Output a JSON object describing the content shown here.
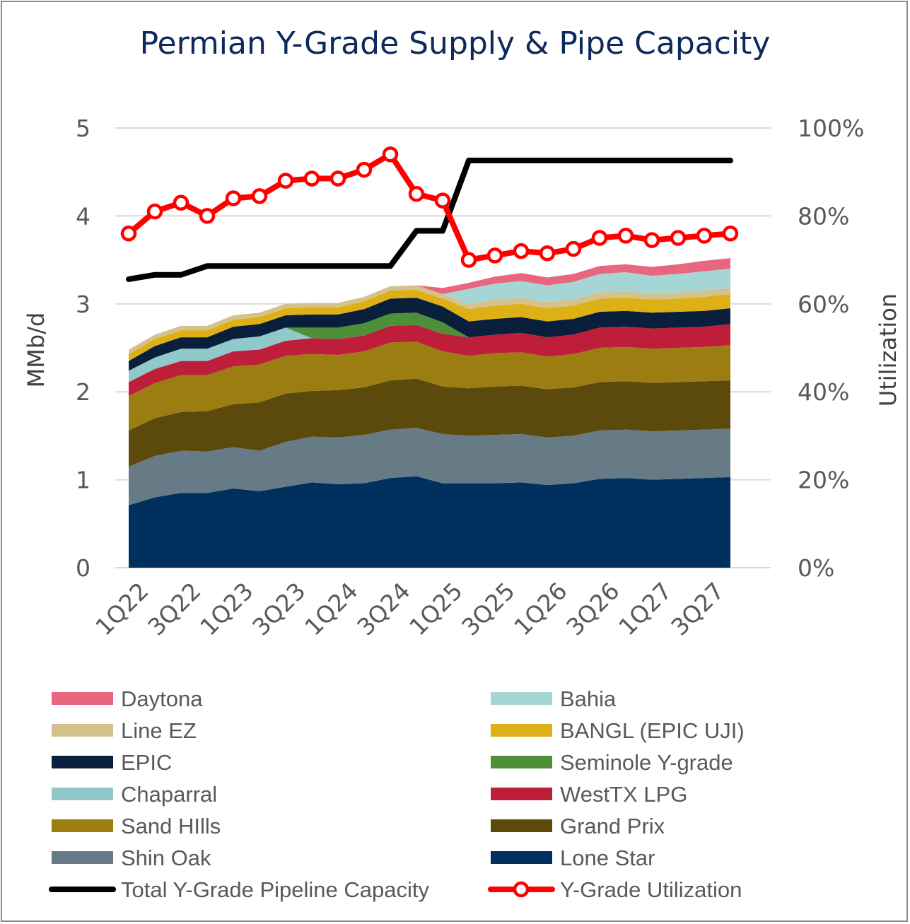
{
  "chart_data": {
    "type": "area",
    "title": "Permian Y-Grade Supply & Pipe Capacity",
    "ylabel": "MMb/d",
    "y2label": "Utilization",
    "ylim": [
      0,
      5
    ],
    "y2lim": [
      0,
      100
    ],
    "y_ticks": [
      "0",
      "1",
      "2",
      "3",
      "4",
      "5"
    ],
    "y2_ticks": [
      "0%",
      "20%",
      "40%",
      "60%",
      "80%",
      "100%"
    ],
    "x_tick_labels": [
      "1Q22",
      "3Q22",
      "1Q23",
      "3Q23",
      "1Q24",
      "3Q24",
      "1Q25",
      "3Q25",
      "1Q26",
      "3Q26",
      "1Q27",
      "3Q27"
    ],
    "x": [
      "1Q22",
      "2Q22",
      "3Q22",
      "4Q22",
      "1Q23",
      "2Q23",
      "3Q23",
      "4Q23",
      "1Q24",
      "2Q24",
      "3Q24",
      "4Q24",
      "1Q25",
      "2Q25",
      "3Q25",
      "4Q25",
      "1Q26",
      "2Q26",
      "3Q26",
      "4Q26",
      "1Q27",
      "2Q27",
      "3Q27",
      "4Q27"
    ],
    "stacked_series": [
      {
        "name": "Lone Star",
        "color": "#00305e",
        "values": [
          0.71,
          0.8,
          0.85,
          0.85,
          0.9,
          0.87,
          0.92,
          0.97,
          0.95,
          0.96,
          1.02,
          1.04,
          0.96,
          0.96,
          0.96,
          0.97,
          0.94,
          0.96,
          1.01,
          1.02,
          1.0,
          1.01,
          1.02,
          1.03
        ]
      },
      {
        "name": "Shin Oak",
        "color": "#667b85",
        "values": [
          0.44,
          0.47,
          0.48,
          0.47,
          0.47,
          0.46,
          0.51,
          0.52,
          0.53,
          0.55,
          0.55,
          0.55,
          0.56,
          0.54,
          0.55,
          0.55,
          0.54,
          0.54,
          0.55,
          0.55,
          0.55,
          0.55,
          0.55,
          0.55
        ]
      },
      {
        "name": "Grand Prix",
        "color": "#5c4a0c",
        "values": [
          0.41,
          0.43,
          0.44,
          0.46,
          0.49,
          0.55,
          0.55,
          0.52,
          0.54,
          0.54,
          0.56,
          0.56,
          0.54,
          0.54,
          0.55,
          0.55,
          0.55,
          0.55,
          0.55,
          0.55,
          0.55,
          0.55,
          0.55,
          0.55
        ]
      },
      {
        "name": "Sand HIlls",
        "color": "#9b7d12",
        "values": [
          0.39,
          0.4,
          0.42,
          0.41,
          0.43,
          0.43,
          0.43,
          0.42,
          0.4,
          0.41,
          0.43,
          0.42,
          0.4,
          0.37,
          0.38,
          0.38,
          0.37,
          0.38,
          0.39,
          0.39,
          0.39,
          0.39,
          0.39,
          0.4
        ]
      },
      {
        "name": "WestTX LPG",
        "color": "#bf1e3a",
        "values": [
          0.16,
          0.16,
          0.16,
          0.16,
          0.17,
          0.17,
          0.17,
          0.18,
          0.18,
          0.18,
          0.19,
          0.19,
          0.2,
          0.21,
          0.21,
          0.22,
          0.22,
          0.22,
          0.23,
          0.23,
          0.23,
          0.23,
          0.23,
          0.24
        ]
      },
      {
        "name": "Chaparral",
        "color": "#8fc9c9",
        "values": [
          0.13,
          0.13,
          0.14,
          0.14,
          0.14,
          0.15,
          0.15,
          0.0,
          0.0,
          0.0,
          0.0,
          0.0,
          0.0,
          0.0,
          0.0,
          0.0,
          0.0,
          0.0,
          0.0,
          0.0,
          0.0,
          0.0,
          0.0,
          0.0
        ]
      },
      {
        "name": "Seminole Y-grade",
        "color": "#4e8f3a",
        "values": [
          0.0,
          0.0,
          0.0,
          0.0,
          0.0,
          0.0,
          0.0,
          0.12,
          0.13,
          0.14,
          0.14,
          0.14,
          0.13,
          0.0,
          0.0,
          0.0,
          0.0,
          0.0,
          0.0,
          0.0,
          0.0,
          0.0,
          0.0,
          0.0
        ]
      },
      {
        "name": "EPIC",
        "color": "#0a1f3c",
        "values": [
          0.11,
          0.13,
          0.13,
          0.13,
          0.14,
          0.14,
          0.14,
          0.15,
          0.15,
          0.16,
          0.17,
          0.17,
          0.18,
          0.18,
          0.18,
          0.18,
          0.18,
          0.18,
          0.18,
          0.18,
          0.18,
          0.18,
          0.18,
          0.18
        ]
      },
      {
        "name": "BANGL (EPIC UJI)",
        "color": "#ddb015",
        "values": [
          0.08,
          0.08,
          0.08,
          0.08,
          0.08,
          0.08,
          0.08,
          0.08,
          0.08,
          0.09,
          0.09,
          0.09,
          0.09,
          0.14,
          0.15,
          0.15,
          0.15,
          0.15,
          0.15,
          0.15,
          0.15,
          0.15,
          0.16,
          0.16
        ]
      },
      {
        "name": "Line EZ",
        "color": "#d4c28c",
        "values": [
          0.05,
          0.05,
          0.05,
          0.05,
          0.05,
          0.05,
          0.05,
          0.05,
          0.05,
          0.05,
          0.05,
          0.05,
          0.05,
          0.06,
          0.07,
          0.07,
          0.07,
          0.07,
          0.07,
          0.07,
          0.07,
          0.07,
          0.07,
          0.07
        ]
      },
      {
        "name": "Bahia",
        "color": "#a6d5d6",
        "values": [
          0.0,
          0.0,
          0.0,
          0.0,
          0.0,
          0.0,
          0.0,
          0.0,
          0.0,
          0.0,
          0.0,
          0.0,
          0.0,
          0.17,
          0.18,
          0.19,
          0.19,
          0.2,
          0.21,
          0.22,
          0.2,
          0.21,
          0.22,
          0.22
        ]
      },
      {
        "name": "Daytona",
        "color": "#e8677f",
        "values": [
          0.0,
          0.0,
          0.0,
          0.0,
          0.0,
          0.0,
          0.0,
          0.0,
          0.0,
          0.0,
          0.0,
          0.0,
          0.07,
          0.07,
          0.08,
          0.09,
          0.09,
          0.09,
          0.09,
          0.09,
          0.1,
          0.11,
          0.12,
          0.12
        ]
      }
    ],
    "lines": [
      {
        "name": "Total Y-Grade Pipeline Capacity",
        "axis": "left",
        "color": "#000000",
        "values": [
          3.28,
          3.33,
          3.33,
          3.43,
          3.43,
          3.43,
          3.43,
          3.43,
          3.43,
          3.43,
          3.43,
          3.83,
          3.83,
          4.63,
          4.63,
          4.63,
          4.63,
          4.63,
          4.63,
          4.63,
          4.63,
          4.63,
          4.63,
          4.63
        ]
      },
      {
        "name": "Y-Grade Utilization",
        "axis": "right",
        "color": "#ff0000",
        "markers": true,
        "values": [
          76,
          81,
          83,
          80,
          84,
          84.5,
          88,
          88.5,
          88.5,
          90.5,
          94,
          85,
          83.5,
          70,
          71,
          72,
          71.5,
          72.5,
          75,
          75.5,
          74.5,
          75,
          75.5,
          76
        ]
      }
    ],
    "legend": [
      {
        "label": "Daytona",
        "kind": "area",
        "color": "#e8677f"
      },
      {
        "label": "Bahia",
        "kind": "area",
        "color": "#a6d5d6"
      },
      {
        "label": "Line EZ",
        "kind": "area",
        "color": "#d4c28c"
      },
      {
        "label": "BANGL (EPIC UJI)",
        "kind": "area",
        "color": "#ddb015"
      },
      {
        "label": "EPIC",
        "kind": "area",
        "color": "#0a1f3c"
      },
      {
        "label": "Seminole Y-grade",
        "kind": "area",
        "color": "#4e8f3a"
      },
      {
        "label": "Chaparral",
        "kind": "area",
        "color": "#8fc9c9"
      },
      {
        "label": "WestTX LPG",
        "kind": "area",
        "color": "#bf1e3a"
      },
      {
        "label": "Sand HIlls",
        "kind": "area",
        "color": "#9b7d12"
      },
      {
        "label": "Grand Prix",
        "kind": "area",
        "color": "#5c4a0c"
      },
      {
        "label": "Shin Oak",
        "kind": "area",
        "color": "#667b85"
      },
      {
        "label": "Lone Star",
        "kind": "area",
        "color": "#00305e"
      },
      {
        "label": "Total Y-Grade Pipeline Capacity",
        "kind": "line",
        "color": "#000000"
      },
      {
        "label": "Y-Grade Utilization",
        "kind": "line-marker",
        "color": "#ff0000"
      }
    ],
    "legend_position": "bottom",
    "grid": true
  }
}
